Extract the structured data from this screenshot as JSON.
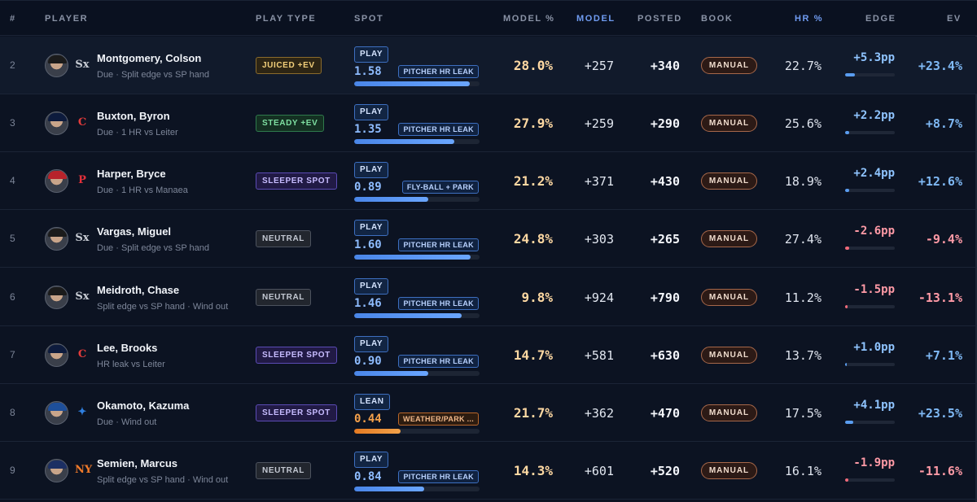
{
  "headers": {
    "rank": "#",
    "player": "PLAYER",
    "play_type": "PLAY TYPE",
    "spot": "SPOT",
    "model_pct": "MODEL %",
    "model": "MODEL",
    "posted": "POSTED",
    "book": "BOOK",
    "hr_pct": "HR %",
    "edge": "EDGE",
    "ev": "EV"
  },
  "colors": {
    "accent_blue": "#6f9bf0",
    "positive": "#8fc4ff",
    "negative": "#ff9aa6",
    "model_pct": "#ffd9a3"
  },
  "rows": [
    {
      "rank": "2",
      "name": "Montgomery, Colson",
      "note": "Due · Split edge vs SP hand",
      "team_icon": "white-sox-logo-icon",
      "team_glyph": "Sx",
      "team_color": "#c8ccd4",
      "cap_color": "#1b1b1b",
      "play_type": "JUICED +EV",
      "play_style": "juiced",
      "spot_tag": "PLAY",
      "spot_value": "1.58",
      "reason": "PITCHER HR LEAK",
      "spot_fill": 0.92,
      "spot_color": "blue",
      "model_pct": "28.0%",
      "model": "+257",
      "posted": "+340",
      "book": "MANUAL",
      "hr_pct": "22.7%",
      "edge": "+5.3pp",
      "edge_sign": "pos",
      "edge_fill": 0.2,
      "ev": "+23.4%",
      "ev_sign": "pos"
    },
    {
      "rank": "3",
      "name": "Buxton, Byron",
      "note": "Due · 1 HR vs Leiter",
      "team_icon": "twins-logo-icon",
      "team_glyph": "C",
      "team_color": "#e23b3b",
      "cap_color": "#0d1b3d",
      "play_type": "STEADY +EV",
      "play_style": "steady",
      "spot_tag": "PLAY",
      "spot_value": "1.35",
      "reason": "PITCHER HR LEAK",
      "spot_fill": 0.8,
      "spot_color": "blue",
      "model_pct": "27.9%",
      "model": "+259",
      "posted": "+290",
      "book": "MANUAL",
      "hr_pct": "25.6%",
      "edge": "+2.2pp",
      "edge_sign": "pos",
      "edge_fill": 0.08,
      "ev": "+8.7%",
      "ev_sign": "pos"
    },
    {
      "rank": "4",
      "name": "Harper, Bryce",
      "note": "Due · 1 HR vs Manaea",
      "team_icon": "phillies-logo-icon",
      "team_glyph": "P",
      "team_color": "#e2303a",
      "cap_color": "#b8232b",
      "play_type": "SLEEPER SPOT",
      "play_style": "sleeper",
      "spot_tag": "PLAY",
      "spot_value": "0.89",
      "reason": "FLY-BALL + PARK",
      "spot_fill": 0.59,
      "spot_color": "blue",
      "model_pct": "21.2%",
      "model": "+371",
      "posted": "+430",
      "book": "MANUAL",
      "hr_pct": "18.9%",
      "edge": "+2.4pp",
      "edge_sign": "pos",
      "edge_fill": 0.09,
      "ev": "+12.6%",
      "ev_sign": "pos"
    },
    {
      "rank": "5",
      "name": "Vargas, Miguel",
      "note": "Due · Split edge vs SP hand",
      "team_icon": "white-sox-logo-icon",
      "team_glyph": "Sx",
      "team_color": "#c8ccd4",
      "cap_color": "#1b1b1b",
      "play_type": "NEUTRAL",
      "play_style": "neutral",
      "spot_tag": "PLAY",
      "spot_value": "1.60",
      "reason": "PITCHER HR LEAK",
      "spot_fill": 0.93,
      "spot_color": "blue",
      "model_pct": "24.8%",
      "model": "+303",
      "posted": "+265",
      "book": "MANUAL",
      "hr_pct": "27.4%",
      "edge": "-2.6pp",
      "edge_sign": "neg",
      "edge_fill": 0.09,
      "ev": "-9.4%",
      "ev_sign": "neg"
    },
    {
      "rank": "6",
      "name": "Meidroth, Chase",
      "note": "Split edge vs SP hand · Wind out",
      "team_icon": "white-sox-logo-icon",
      "team_glyph": "Sx",
      "team_color": "#c8ccd4",
      "cap_color": "#1b1b1b",
      "play_type": "NEUTRAL",
      "play_style": "neutral",
      "spot_tag": "PLAY",
      "spot_value": "1.46",
      "reason": "PITCHER HR LEAK",
      "spot_fill": 0.86,
      "spot_color": "blue",
      "model_pct": "9.8%",
      "model": "+924",
      "posted": "+790",
      "book": "MANUAL",
      "hr_pct": "11.2%",
      "edge": "-1.5pp",
      "edge_sign": "neg",
      "edge_fill": 0.05,
      "ev": "-13.1%",
      "ev_sign": "neg"
    },
    {
      "rank": "7",
      "name": "Lee, Brooks",
      "note": "HR leak vs Leiter",
      "team_icon": "twins-logo-icon",
      "team_glyph": "C",
      "team_color": "#e23b3b",
      "cap_color": "#0d1b3d",
      "play_type": "SLEEPER SPOT",
      "play_style": "sleeper",
      "spot_tag": "PLAY",
      "spot_value": "0.90",
      "reason": "PITCHER HR LEAK",
      "spot_fill": 0.59,
      "spot_color": "blue",
      "model_pct": "14.7%",
      "model": "+581",
      "posted": "+630",
      "book": "MANUAL",
      "hr_pct": "13.7%",
      "edge": "+1.0pp",
      "edge_sign": "pos",
      "edge_fill": 0.03,
      "ev": "+7.1%",
      "ev_sign": "pos"
    },
    {
      "rank": "8",
      "name": "Okamoto, Kazuma",
      "note": "Due · Wind out",
      "team_icon": "blue-jays-logo-icon",
      "team_glyph": "✦",
      "team_color": "#2f7fe0",
      "cap_color": "#1e4f9a",
      "play_type": "SLEEPER SPOT",
      "play_style": "sleeper",
      "spot_tag": "LEAN",
      "spot_value": "0.44",
      "reason": "WEATHER/PARK ...",
      "spot_fill": 0.37,
      "spot_color": "orange",
      "model_pct": "21.7%",
      "model": "+362",
      "posted": "+470",
      "book": "MANUAL",
      "hr_pct": "17.5%",
      "edge": "+4.1pp",
      "edge_sign": "pos",
      "edge_fill": 0.16,
      "ev": "+23.5%",
      "ev_sign": "pos"
    },
    {
      "rank": "9",
      "name": "Semien, Marcus",
      "note": "Split edge vs SP hand · Wind out",
      "team_icon": "mets-logo-icon",
      "team_glyph": "NY",
      "team_color": "#f07a2a",
      "cap_color": "#1c2f63",
      "play_type": "NEUTRAL",
      "play_style": "neutral",
      "spot_tag": "PLAY",
      "spot_value": "0.84",
      "reason": "PITCHER HR LEAK",
      "spot_fill": 0.56,
      "spot_color": "blue",
      "model_pct": "14.3%",
      "model": "+601",
      "posted": "+520",
      "book": "MANUAL",
      "hr_pct": "16.1%",
      "edge": "-1.9pp",
      "edge_sign": "neg",
      "edge_fill": 0.06,
      "ev": "-11.6%",
      "ev_sign": "neg"
    }
  ]
}
